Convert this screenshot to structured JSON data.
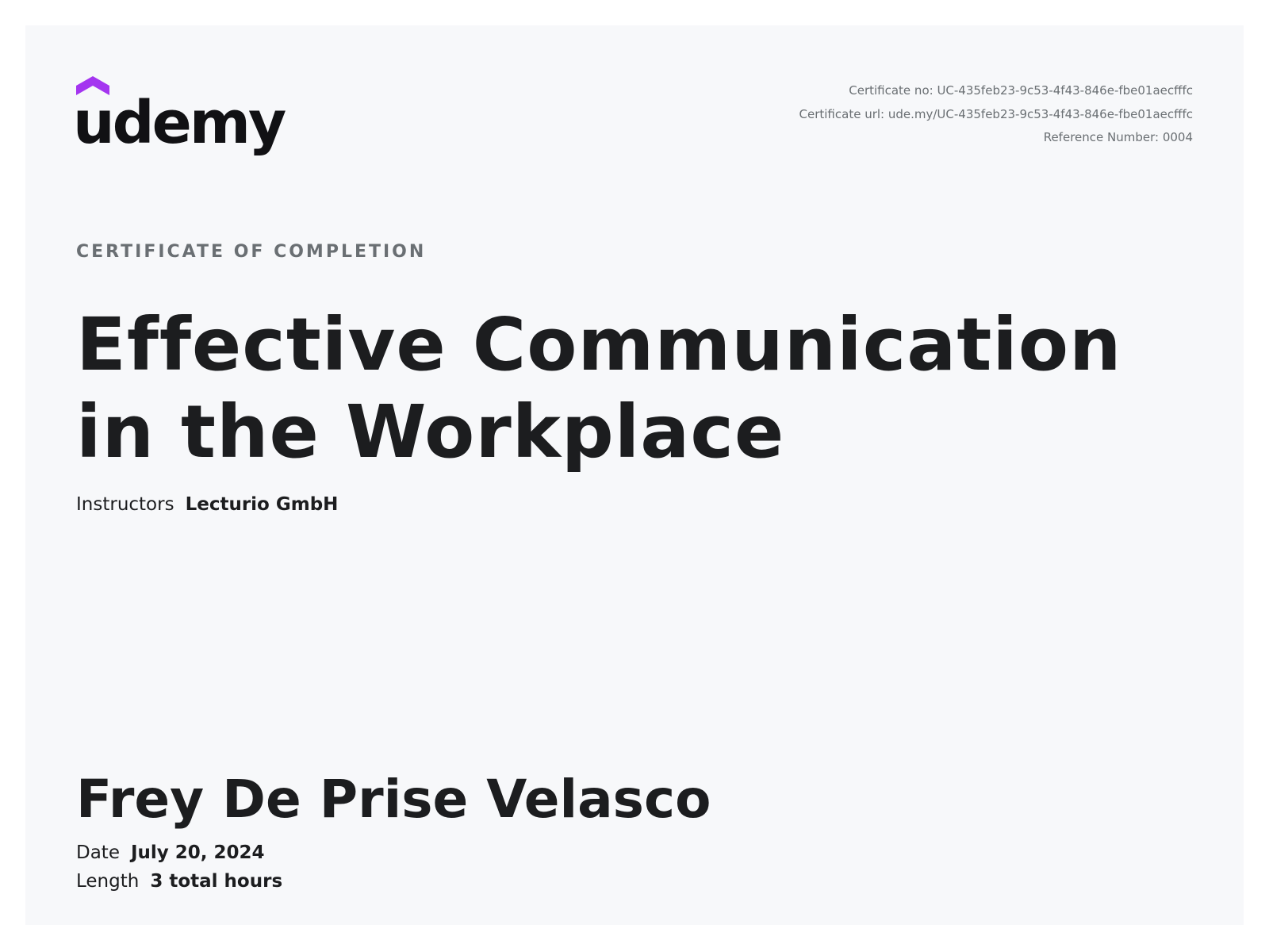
{
  "brand": {
    "name": "udemy",
    "accent_color": "#a435f0",
    "logo_icon": "udemy-cap-logo"
  },
  "meta": {
    "certificate_no": "Certificate no: UC-435feb23-9c53-4f43-846e-fbe01aecfffc",
    "certificate_url": "Certificate url: ude.my/UC-435feb23-9c53-4f43-846e-fbe01aecfffc",
    "reference_number": "Reference Number: 0004"
  },
  "certificate": {
    "kicker": "CERTIFICATE OF COMPLETION",
    "course_title": "Effective Communication in the Workplace",
    "instructors_label": "Instructors",
    "instructors_value": "Lecturio GmbH",
    "student_name": "Frey De Prise Velasco",
    "date_label": "Date",
    "date_value": "July 20, 2024",
    "length_label": "Length",
    "length_value": "3 total hours"
  },
  "colors": {
    "background": "#f7f8fa",
    "text_primary": "#1c1d1f",
    "text_muted": "#6a6f73"
  }
}
